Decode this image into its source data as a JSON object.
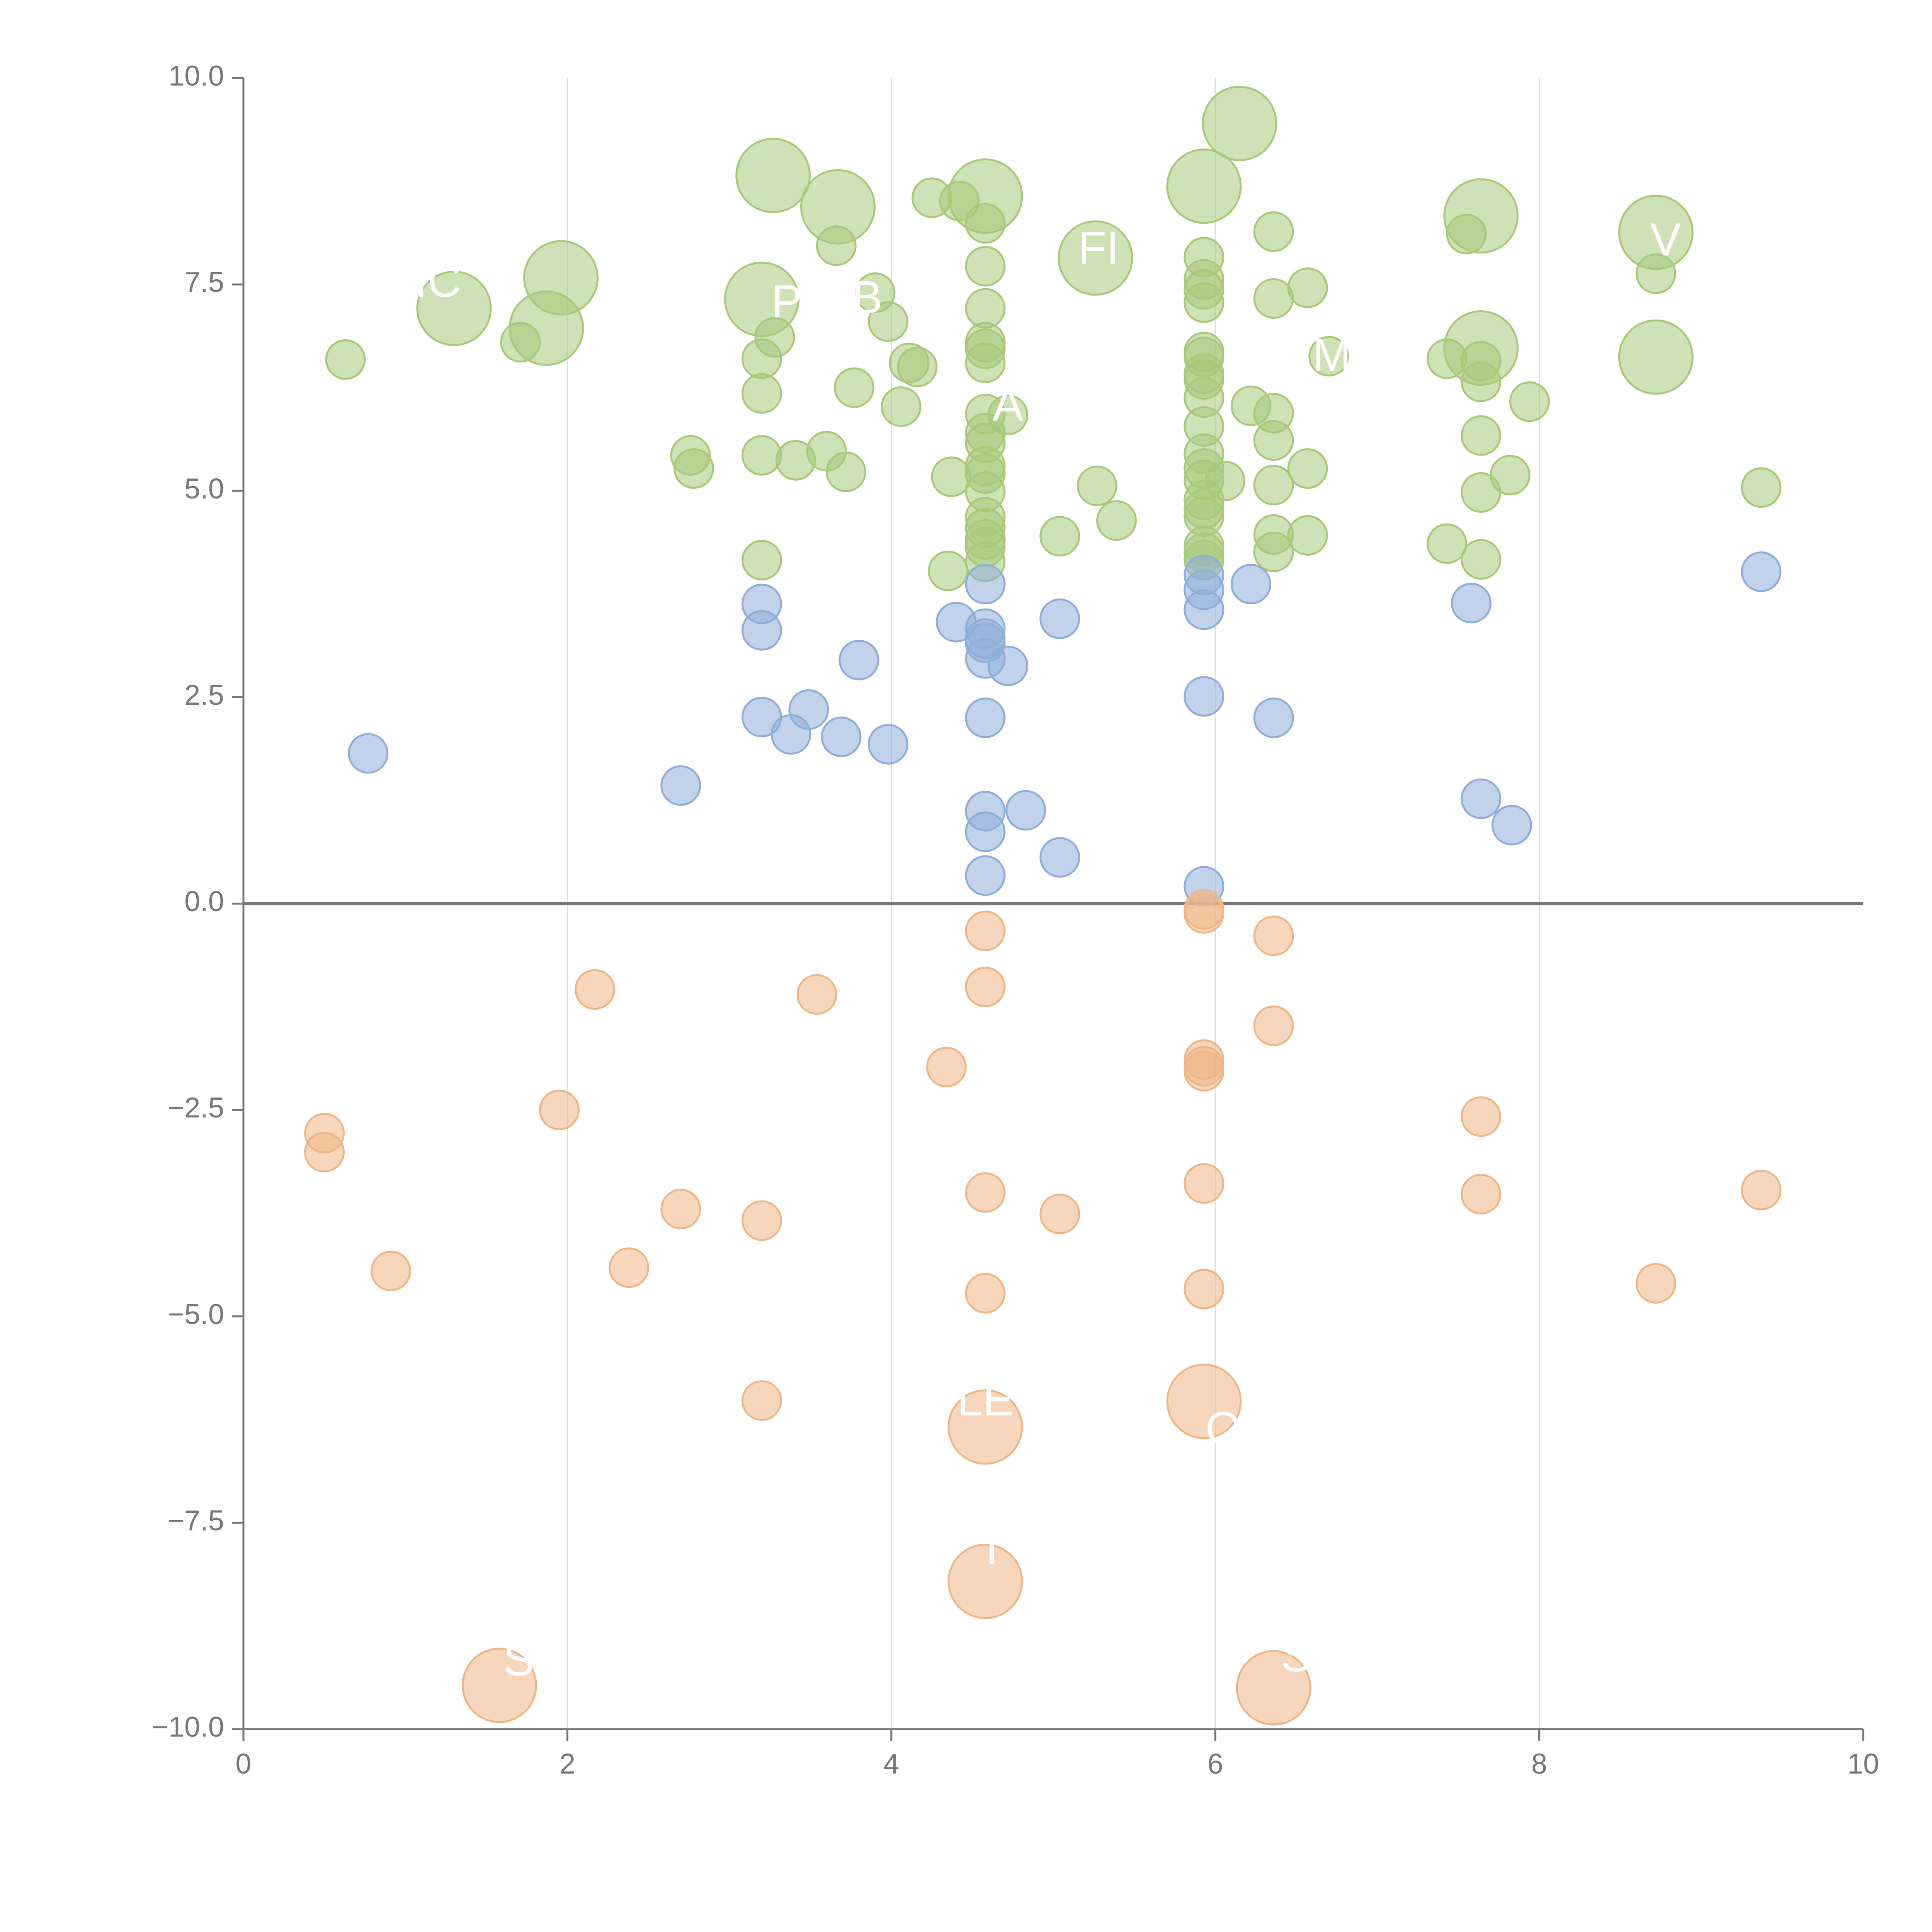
{
  "chart_data": {
    "type": "scatter",
    "title": "",
    "xlabel": "",
    "ylabel": "",
    "xlim": [
      0,
      10
    ],
    "ylim": [
      -10,
      10
    ],
    "x_ticks": [
      "0",
      "2",
      "4",
      "6",
      "8",
      "10"
    ],
    "x_tick_values": [
      0,
      2,
      4,
      6,
      8,
      10
    ],
    "y_ticks": [
      "10.0",
      "7.5",
      "5.0",
      "2.5",
      "0.0",
      "−2.5",
      "−5.0",
      "−7.5",
      "−10.0"
    ],
    "y_tick_values": [
      10,
      7.5,
      5,
      2.5,
      0,
      -2.5,
      -5,
      -7.5,
      -10
    ],
    "grid": {
      "vertical": true,
      "horizontal": false
    },
    "zero_line": true,
    "series": [
      {
        "color": "#a8c97a",
        "points": [
          [
            0.63,
            6.59,
            1
          ],
          [
            1.3,
            7.21,
            3
          ],
          [
            1.71,
            6.8,
            1
          ],
          [
            1.87,
            6.97,
            3
          ],
          [
            1.96,
            7.58,
            3
          ],
          [
            2.76,
            5.43,
            1
          ],
          [
            2.78,
            5.27,
            1
          ],
          [
            3.2,
            7.32,
            3
          ],
          [
            3.2,
            6.6,
            1
          ],
          [
            3.2,
            6.18,
            1
          ],
          [
            3.2,
            5.43,
            1
          ],
          [
            3.2,
            4.16,
            1
          ],
          [
            3.27,
            8.82,
            3
          ],
          [
            3.28,
            6.86,
            1
          ],
          [
            3.41,
            5.37,
            1
          ],
          [
            3.6,
            5.48,
            1
          ],
          [
            3.66,
            7.97,
            1
          ],
          [
            3.67,
            8.44,
            3
          ],
          [
            3.72,
            5.23,
            1
          ],
          [
            3.77,
            6.25,
            1
          ],
          [
            3.9,
            7.4,
            1
          ],
          [
            3.98,
            7.05,
            1
          ],
          [
            4.06,
            6.02,
            1
          ],
          [
            4.11,
            6.55,
            1
          ],
          [
            4.16,
            6.5,
            1
          ],
          [
            4.25,
            8.55,
            1
          ],
          [
            4.35,
            4.03,
            1
          ],
          [
            4.37,
            5.17,
            1
          ],
          [
            4.42,
            8.51,
            1
          ],
          [
            4.58,
            8.57,
            3
          ],
          [
            4.58,
            8.24,
            1
          ],
          [
            4.58,
            7.72,
            1
          ],
          [
            4.58,
            7.21,
            1
          ],
          [
            4.58,
            6.8,
            1
          ],
          [
            4.58,
            6.72,
            1
          ],
          [
            4.58,
            6.55,
            1
          ],
          [
            4.58,
            5.93,
            1
          ],
          [
            4.58,
            5.7,
            1
          ],
          [
            4.58,
            5.58,
            1
          ],
          [
            4.58,
            5.3,
            1
          ],
          [
            4.58,
            5.21,
            1
          ],
          [
            4.58,
            4.99,
            1
          ],
          [
            4.58,
            4.68,
            1
          ],
          [
            4.58,
            4.55,
            1
          ],
          [
            4.58,
            4.41,
            1
          ],
          [
            4.58,
            4.32,
            1
          ],
          [
            4.58,
            4.14,
            1
          ],
          [
            4.72,
            5.92,
            1
          ],
          [
            5.04,
            4.45,
            1
          ],
          [
            5.26,
            7.82,
            3
          ],
          [
            5.27,
            5.06,
            1
          ],
          [
            5.39,
            4.64,
            1
          ],
          [
            5.93,
            8.69,
            3
          ],
          [
            5.93,
            7.83,
            1
          ],
          [
            5.93,
            7.56,
            1
          ],
          [
            5.93,
            7.44,
            1
          ],
          [
            5.93,
            7.28,
            1
          ],
          [
            5.93,
            6.68,
            1
          ],
          [
            5.93,
            6.62,
            1
          ],
          [
            5.93,
            6.42,
            1
          ],
          [
            5.93,
            6.35,
            1
          ],
          [
            5.93,
            6.13,
            1
          ],
          [
            5.93,
            5.78,
            1
          ],
          [
            5.93,
            5.45,
            1
          ],
          [
            5.93,
            5.27,
            1
          ],
          [
            5.93,
            5.13,
            1
          ],
          [
            5.93,
            4.89,
            1
          ],
          [
            5.93,
            4.78,
            1
          ],
          [
            5.93,
            4.69,
            1
          ],
          [
            5.93,
            4.33,
            1
          ],
          [
            5.93,
            4.25,
            1
          ],
          [
            5.93,
            4.16,
            1
          ],
          [
            6.06,
            5.12,
            1
          ],
          [
            6.15,
            9.45,
            3
          ],
          [
            6.22,
            6.03,
            1
          ],
          [
            6.36,
            8.14,
            1
          ],
          [
            6.36,
            7.33,
            1
          ],
          [
            6.36,
            5.94,
            1
          ],
          [
            6.36,
            5.61,
            1
          ],
          [
            6.36,
            5.07,
            1
          ],
          [
            6.36,
            4.47,
            1
          ],
          [
            6.36,
            4.26,
            1
          ],
          [
            6.57,
            7.46,
            1
          ],
          [
            6.57,
            5.27,
            1
          ],
          [
            6.57,
            4.46,
            1
          ],
          [
            6.7,
            6.63,
            1
          ],
          [
            7.43,
            6.6,
            1
          ],
          [
            7.43,
            4.36,
            1
          ],
          [
            7.55,
            8.11,
            1
          ],
          [
            7.64,
            8.33,
            3
          ],
          [
            7.64,
            6.73,
            3
          ],
          [
            7.64,
            6.57,
            1
          ],
          [
            7.64,
            6.32,
            1
          ],
          [
            7.64,
            5.67,
            1
          ],
          [
            7.64,
            4.98,
            1
          ],
          [
            7.64,
            4.17,
            1
          ],
          [
            7.82,
            5.19,
            1
          ],
          [
            7.94,
            6.08,
            1
          ],
          [
            8.72,
            8.13,
            3
          ],
          [
            8.72,
            7.63,
            1
          ],
          [
            8.72,
            6.62,
            3
          ],
          [
            9.37,
            5.04,
            1
          ]
        ]
      },
      {
        "color": "#8fadd9",
        "points": [
          [
            0.77,
            1.82,
            1
          ],
          [
            2.7,
            1.43,
            1
          ],
          [
            3.2,
            3.63,
            1
          ],
          [
            3.2,
            3.31,
            1
          ],
          [
            3.2,
            2.26,
            1
          ],
          [
            3.38,
            2.05,
            1
          ],
          [
            3.49,
            2.35,
            1
          ],
          [
            3.69,
            2.02,
            1
          ],
          [
            3.8,
            2.95,
            1
          ],
          [
            3.98,
            1.93,
            1
          ],
          [
            4.4,
            3.41,
            1
          ],
          [
            4.58,
            3.87,
            1
          ],
          [
            4.58,
            3.33,
            1
          ],
          [
            4.58,
            3.21,
            1
          ],
          [
            4.58,
            3.16,
            1
          ],
          [
            4.58,
            2.97,
            1
          ],
          [
            4.58,
            2.25,
            1
          ],
          [
            4.58,
            1.12,
            1
          ],
          [
            4.58,
            0.87,
            1
          ],
          [
            4.58,
            0.34,
            1
          ],
          [
            4.72,
            2.88,
            1
          ],
          [
            4.83,
            1.13,
            1
          ],
          [
            5.04,
            3.45,
            1
          ],
          [
            5.04,
            0.56,
            1
          ],
          [
            5.93,
            3.98,
            1
          ],
          [
            5.93,
            3.8,
            1
          ],
          [
            5.93,
            3.56,
            1
          ],
          [
            5.93,
            2.51,
            1
          ],
          [
            5.93,
            0.21,
            1
          ],
          [
            6.22,
            3.87,
            1
          ],
          [
            6.36,
            2.25,
            1
          ],
          [
            7.58,
            3.64,
            1
          ],
          [
            7.64,
            1.27,
            1
          ],
          [
            7.83,
            0.95,
            1
          ],
          [
            9.37,
            4.02,
            1
          ]
        ]
      },
      {
        "color": "#eeb687",
        "points": [
          [
            0.5,
            -2.78,
            1
          ],
          [
            0.5,
            -3.01,
            1
          ],
          [
            0.91,
            -4.45,
            1
          ],
          [
            1.58,
            -9.47,
            3
          ],
          [
            1.95,
            -2.5,
            1
          ],
          [
            2.17,
            -1.04,
            1
          ],
          [
            2.38,
            -4.41,
            1
          ],
          [
            2.7,
            -3.7,
            1
          ],
          [
            3.2,
            -3.84,
            1
          ],
          [
            3.2,
            -6.02,
            1
          ],
          [
            3.54,
            -1.1,
            1
          ],
          [
            4.34,
            -1.98,
            1
          ],
          [
            4.58,
            -0.33,
            1
          ],
          [
            4.58,
            -1.01,
            1
          ],
          [
            4.58,
            -3.5,
            1
          ],
          [
            4.58,
            -4.72,
            1
          ],
          [
            4.58,
            -6.34,
            3
          ],
          [
            4.58,
            -8.21,
            3
          ],
          [
            5.04,
            -3.76,
            1
          ],
          [
            5.93,
            -0.07,
            1
          ],
          [
            5.93,
            -0.12,
            1
          ],
          [
            5.93,
            -1.89,
            1
          ],
          [
            5.93,
            -1.97,
            1
          ],
          [
            5.93,
            -2.03,
            1
          ],
          [
            5.93,
            -3.39,
            1
          ],
          [
            5.93,
            -4.67,
            1
          ],
          [
            5.93,
            -6.03,
            3
          ],
          [
            6.36,
            -0.39,
            1
          ],
          [
            6.36,
            -1.48,
            1
          ],
          [
            6.36,
            -9.5,
            3
          ],
          [
            7.64,
            -2.58,
            1
          ],
          [
            7.64,
            -3.52,
            1
          ],
          [
            8.72,
            -4.6,
            1
          ],
          [
            9.37,
            -3.47,
            1
          ]
        ]
      }
    ],
    "point_labels": [
      {
        "text": "IC",
        "x": 1.2,
        "y": 7.5,
        "color": "#ffffff"
      },
      {
        "text": "PE",
        "x": 3.45,
        "y": 7.25,
        "color": "#ffffff"
      },
      {
        "text": "B",
        "x": 3.85,
        "y": 7.3,
        "color": "#ffffff"
      },
      {
        "text": "FI",
        "x": 5.28,
        "y": 7.9,
        "color": "#ffffff"
      },
      {
        "text": "A",
        "x": 4.72,
        "y": 6.0,
        "color": "#ffffff"
      },
      {
        "text": "M",
        "x": 6.72,
        "y": 6.6,
        "color": "#ffffff"
      },
      {
        "text": "V",
        "x": 8.78,
        "y": 8.0,
        "color": "#ffffff"
      },
      {
        "text": "LE",
        "x": 4.58,
        "y": -6.05,
        "color": "#ffffff"
      },
      {
        "text": "O",
        "x": 6.05,
        "y": -6.4,
        "color": "#ffffff"
      },
      {
        "text": "T",
        "x": 4.62,
        "y": -7.85,
        "color": "#ffffff"
      },
      {
        "text": "S",
        "x": 1.7,
        "y": -9.2,
        "color": "#ffffff"
      },
      {
        "text": "S",
        "x": 6.5,
        "y": -9.15,
        "color": "#ffffff"
      }
    ],
    "legend": "none"
  }
}
